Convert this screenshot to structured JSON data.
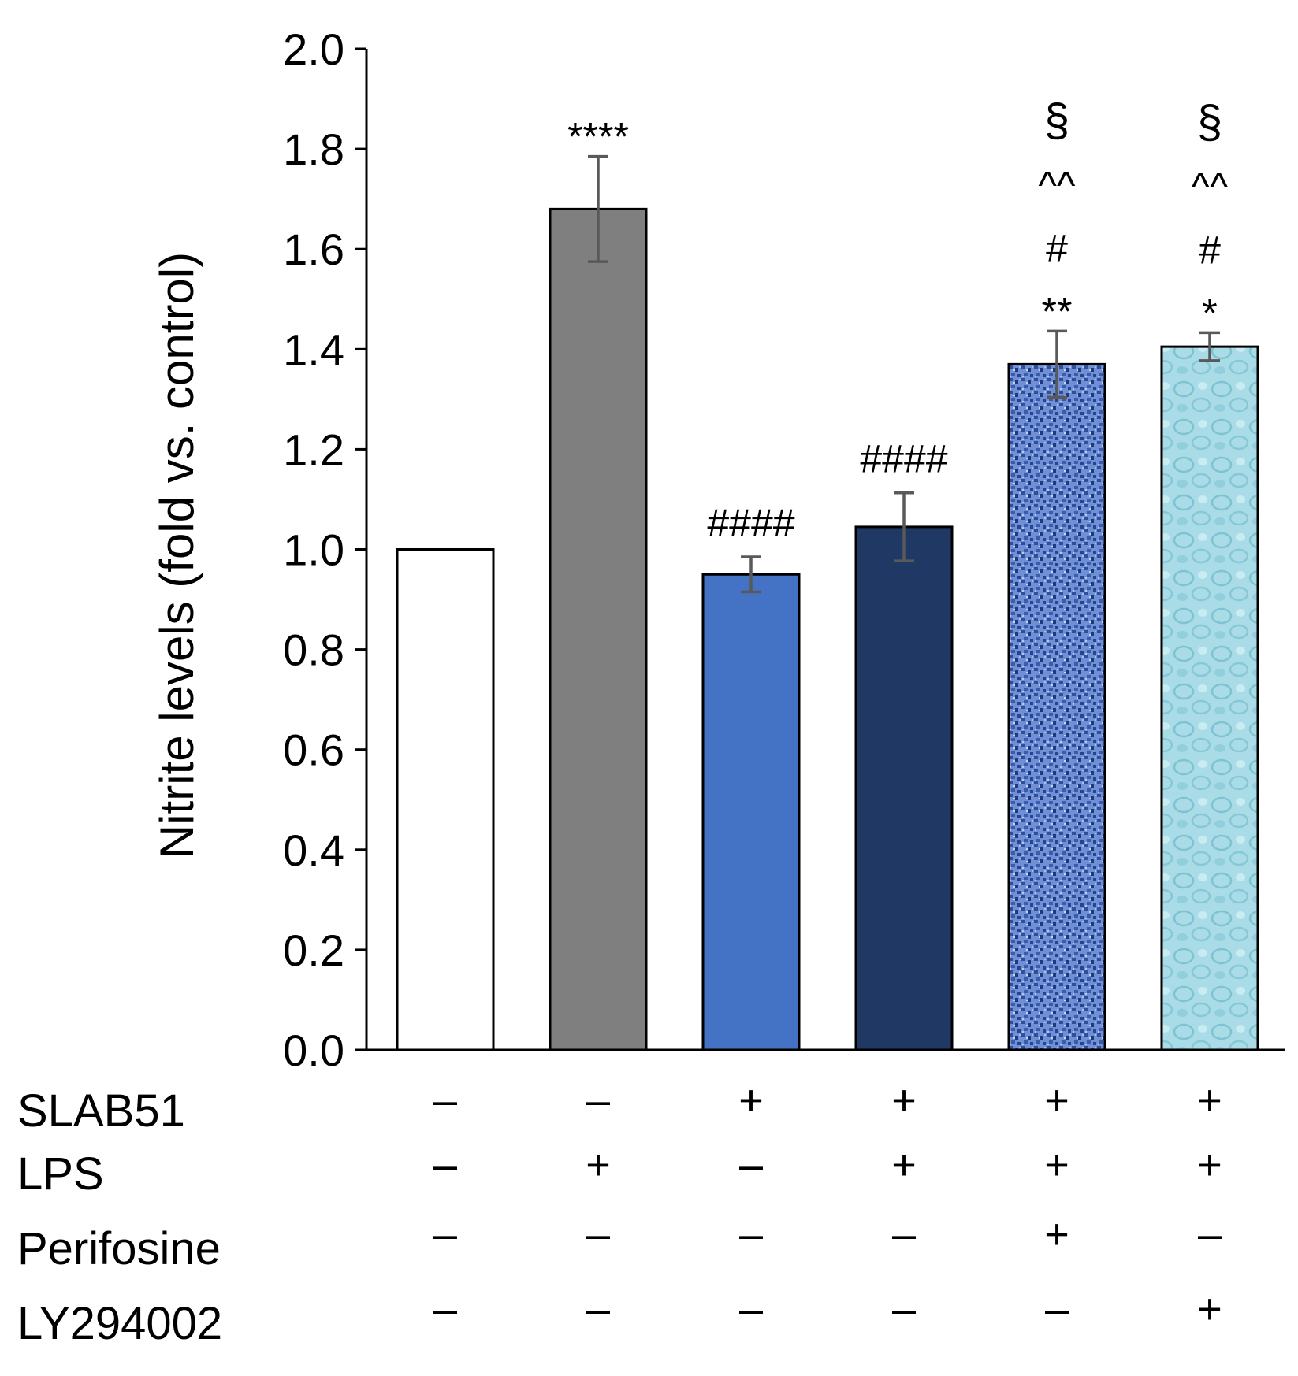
{
  "chart_data": {
    "type": "bar",
    "title": "",
    "xlabel": "",
    "ylabel": "Nitrite levels (fold vs. control)",
    "ylim": [
      0,
      2.0
    ],
    "yticks": [
      "0.0",
      "0.2",
      "0.4",
      "0.6",
      "0.8",
      "1.0",
      "1.2",
      "1.4",
      "1.6",
      "1.8",
      "2.0"
    ],
    "grid": false,
    "bars": [
      {
        "value": 1.0,
        "error": 0.0,
        "fill": "#ffffff",
        "annotations": []
      },
      {
        "value": 1.68,
        "error": 0.105,
        "fill": "#7f7f7f",
        "annotations": [
          "****"
        ]
      },
      {
        "value": 0.95,
        "error": 0.035,
        "fill": "#4472c4",
        "annotations": [
          "####"
        ]
      },
      {
        "value": 1.045,
        "error": 0.068,
        "fill": "#203864",
        "annotations": [
          "####"
        ]
      },
      {
        "value": 1.37,
        "error": 0.066,
        "fill": "#5b7cc4",
        "pattern": "blue-textured",
        "annotations": [
          "**",
          "#",
          "^^",
          "§"
        ]
      },
      {
        "value": 1.405,
        "error": 0.028,
        "fill": "#a7dbe6",
        "pattern": "light-blue-textured",
        "annotations": [
          "*",
          "#",
          "^^",
          "§"
        ]
      }
    ],
    "treatment_rows": [
      {
        "label": "SLAB51",
        "signs": [
          "–",
          "–",
          "+",
          "+",
          "+",
          "+"
        ]
      },
      {
        "label": "LPS",
        "signs": [
          "–",
          "+",
          "–",
          "+",
          "+",
          "+"
        ]
      },
      {
        "label": "Perifosine",
        "signs": [
          "–",
          "–",
          "–",
          "–",
          "+",
          "–"
        ]
      },
      {
        "label": "LY294002",
        "signs": [
          "–",
          "–",
          "–",
          "–",
          "–",
          "+"
        ]
      }
    ],
    "colors": {
      "axis": "#000000",
      "error_bar": "#595959",
      "bar_stroke": "#000000"
    }
  }
}
